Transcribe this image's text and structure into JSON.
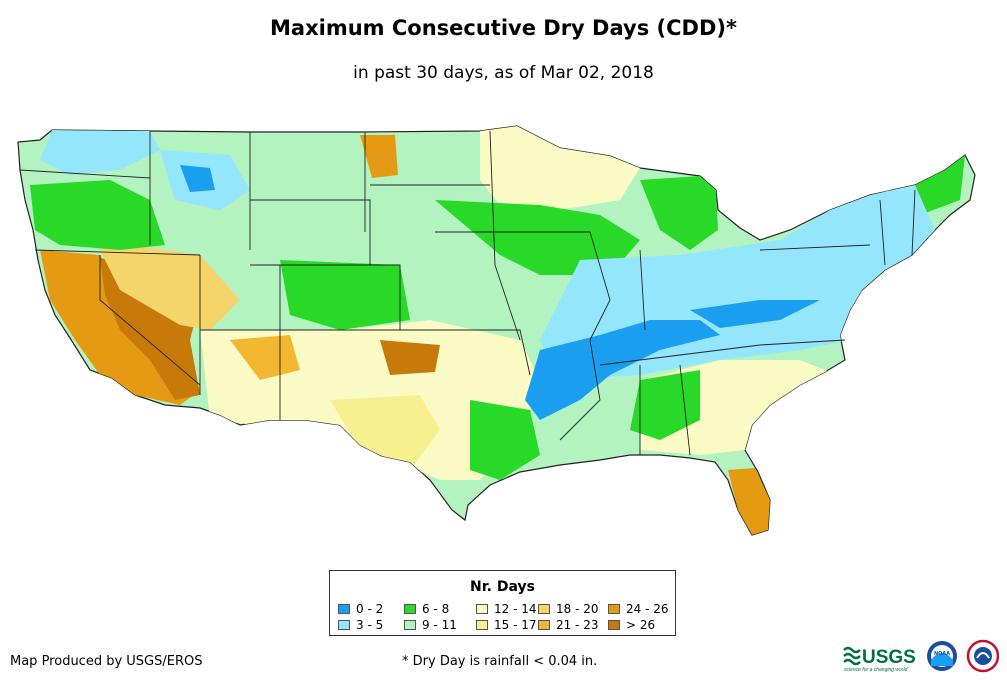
{
  "header": {
    "title": "Maximum Consecutive Dry Days (CDD)*",
    "subtitle": "in past 30 days, as of Mar 02, 2018"
  },
  "legend": {
    "title": "Nr. Days",
    "items": [
      {
        "label": "0 - 2",
        "color": "#1a9ff0"
      },
      {
        "label": "3 - 5",
        "color": "#93e6fb"
      },
      {
        "label": "6 - 8",
        "color": "#28d928"
      },
      {
        "label": "9 - 11",
        "color": "#b2f3c0"
      },
      {
        "label": "12 - 14",
        "color": "#fafac4"
      },
      {
        "label": "15 - 17",
        "color": "#f8f08e"
      },
      {
        "label": "18 - 20",
        "color": "#f5d46a"
      },
      {
        "label": "21 - 23",
        "color": "#f2b630"
      },
      {
        "label": "24 - 26",
        "color": "#e59a14"
      },
      {
        "label": "> 26",
        "color": "#c77a0a"
      }
    ]
  },
  "footer": {
    "credit": "Map Produced by USGS/EROS",
    "footnote": "* Dry Day is rainfall < 0.04 in."
  },
  "logos": {
    "usgs_text": "USGS",
    "usgs_tagline": "science for a changing world",
    "noaa_text": "NOAA"
  },
  "map": {
    "ocean_color": "#ffffff",
    "border_color": "#222222"
  }
}
